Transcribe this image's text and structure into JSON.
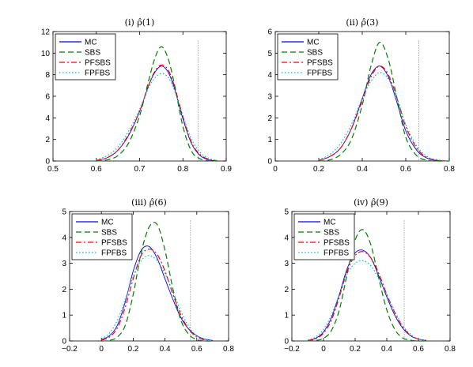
{
  "chart_data": [
    {
      "type": "line",
      "title": "(i) ρ̂(1)",
      "xlim": [
        0.5,
        0.9
      ],
      "ylim": [
        0,
        12
      ],
      "xticks": [
        "0.5",
        "0.6",
        "0.7",
        "0.8",
        "0.9"
      ],
      "yticks": [
        "0",
        "2",
        "4",
        "6",
        "8",
        "10",
        "12"
      ],
      "legend_placement": "top-left",
      "vline": 0.835,
      "x": [
        0.6,
        0.625,
        0.65,
        0.675,
        0.7,
        0.72,
        0.735,
        0.75,
        0.765,
        0.78,
        0.8,
        0.82,
        0.84,
        0.86,
        0.88
      ],
      "series": [
        {
          "name": "MC",
          "values": [
            0.05,
            0.3,
            1.0,
            2.4,
            4.6,
            6.9,
            8.2,
            8.8,
            8.3,
            6.8,
            3.9,
            1.6,
            0.5,
            0.1,
            0.02
          ]
        },
        {
          "name": "SBS",
          "values": [
            0.0,
            0.1,
            0.5,
            1.7,
            4.2,
            7.3,
            9.5,
            10.6,
            9.6,
            7.2,
            3.2,
            0.9,
            0.2,
            0.03,
            0.0
          ]
        },
        {
          "name": "PFSBS",
          "values": [
            0.05,
            0.3,
            1.0,
            2.5,
            4.6,
            6.9,
            8.3,
            8.9,
            8.5,
            7.0,
            4.1,
            1.7,
            0.6,
            0.15,
            0.03
          ]
        },
        {
          "name": "FPFBS",
          "values": [
            0.1,
            0.5,
            1.3,
            2.8,
            4.8,
            6.7,
            7.7,
            8.1,
            7.8,
            6.6,
            4.2,
            2.0,
            0.8,
            0.25,
            0.05
          ]
        }
      ]
    },
    {
      "type": "line",
      "title": "(ii) ρ̂(3)",
      "xlim": [
        0,
        0.8
      ],
      "ylim": [
        0,
        6
      ],
      "xticks": [
        "0",
        "0.2",
        "0.4",
        "0.6",
        "0.8"
      ],
      "yticks": [
        "0",
        "1",
        "2",
        "3",
        "4",
        "5",
        "6"
      ],
      "legend_placement": "top-left",
      "vline": 0.66,
      "x": [
        0.2,
        0.25,
        0.3,
        0.35,
        0.4,
        0.44,
        0.48,
        0.52,
        0.56,
        0.6,
        0.65,
        0.7,
        0.75,
        0.8
      ],
      "series": [
        {
          "name": "MC",
          "values": [
            0.03,
            0.2,
            0.6,
            1.5,
            2.9,
            4.0,
            4.4,
            3.9,
            2.7,
            1.4,
            0.5,
            0.12,
            0.02,
            0.0
          ]
        },
        {
          "name": "SBS",
          "values": [
            0.0,
            0.05,
            0.3,
            1.0,
            2.6,
            4.4,
            5.5,
            4.7,
            2.9,
            1.1,
            0.25,
            0.03,
            0.0,
            0.0
          ]
        },
        {
          "name": "PFSBS",
          "values": [
            0.03,
            0.2,
            0.6,
            1.5,
            2.8,
            3.9,
            4.4,
            4.0,
            2.9,
            1.6,
            0.6,
            0.15,
            0.03,
            0.0
          ]
        },
        {
          "name": "FPFBS",
          "values": [
            0.06,
            0.3,
            0.8,
            1.7,
            2.9,
            3.7,
            4.1,
            3.8,
            2.9,
            1.7,
            0.7,
            0.2,
            0.05,
            0.0
          ]
        }
      ]
    },
    {
      "type": "line",
      "title": "(iii) ρ̂(6)",
      "xlim": [
        -0.2,
        0.8
      ],
      "ylim": [
        0,
        5
      ],
      "xticks": [
        "−0.2",
        "0",
        "0.2",
        "0.4",
        "0.6",
        "0.8"
      ],
      "yticks": [
        "0",
        "1",
        "2",
        "3",
        "4",
        "5"
      ],
      "legend_placement": "top-left",
      "vline": 0.56,
      "x": [
        0.0,
        0.05,
        0.1,
        0.15,
        0.2,
        0.25,
        0.3,
        0.35,
        0.4,
        0.45,
        0.5,
        0.55,
        0.6,
        0.65,
        0.7
      ],
      "series": [
        {
          "name": "MC",
          "values": [
            0.05,
            0.2,
            0.6,
            1.5,
            2.7,
            3.5,
            3.65,
            3.2,
            2.4,
            1.6,
            0.9,
            0.45,
            0.2,
            0.07,
            0.02
          ]
        },
        {
          "name": "SBS",
          "values": [
            0.0,
            0.02,
            0.15,
            0.6,
            1.8,
            3.4,
            4.4,
            4.5,
            3.5,
            2.0,
            0.8,
            0.25,
            0.05,
            0.0,
            0.0
          ]
        },
        {
          "name": "PFSBS",
          "values": [
            0.03,
            0.15,
            0.5,
            1.3,
            2.4,
            3.3,
            3.55,
            3.35,
            2.7,
            1.8,
            1.0,
            0.45,
            0.15,
            0.04,
            0.0
          ]
        },
        {
          "name": "FPFBS",
          "values": [
            0.08,
            0.3,
            0.8,
            1.6,
            2.5,
            3.1,
            3.3,
            3.1,
            2.6,
            1.9,
            1.15,
            0.55,
            0.2,
            0.06,
            0.01
          ]
        }
      ]
    },
    {
      "type": "line",
      "title": "(iv) ρ̂(9)",
      "xlim": [
        -0.2,
        0.8
      ],
      "ylim": [
        0,
        5
      ],
      "xticks": [
        "−0.2",
        "0",
        "0.2",
        "0.4",
        "0.6",
        "0.8"
      ],
      "yticks": [
        "0",
        "1",
        "2",
        "3",
        "4",
        "5"
      ],
      "legend_placement": "top-left",
      "vline": 0.51,
      "x": [
        -0.1,
        -0.05,
        0.0,
        0.05,
        0.1,
        0.15,
        0.2,
        0.25,
        0.3,
        0.35,
        0.4,
        0.45,
        0.5,
        0.55,
        0.6,
        0.65
      ],
      "series": [
        {
          "name": "MC",
          "values": [
            0.02,
            0.1,
            0.35,
            0.9,
            1.8,
            2.8,
            3.4,
            3.5,
            3.2,
            2.5,
            1.7,
            1.0,
            0.5,
            0.2,
            0.07,
            0.02
          ]
        },
        {
          "name": "SBS",
          "values": [
            0.0,
            0.02,
            0.1,
            0.4,
            1.2,
            2.6,
            3.9,
            4.3,
            3.7,
            2.4,
            1.2,
            0.45,
            0.12,
            0.03,
            0.0,
            0.0
          ]
        },
        {
          "name": "PFSBS",
          "values": [
            0.02,
            0.08,
            0.3,
            0.8,
            1.7,
            2.7,
            3.3,
            3.45,
            3.2,
            2.6,
            1.8,
            1.1,
            0.55,
            0.22,
            0.07,
            0.02
          ]
        },
        {
          "name": "FPFBS",
          "values": [
            0.04,
            0.15,
            0.45,
            1.0,
            1.8,
            2.6,
            3.0,
            3.1,
            2.9,
            2.4,
            1.8,
            1.15,
            0.6,
            0.26,
            0.08,
            0.02
          ]
        }
      ]
    }
  ],
  "series_styles": {
    "MC": {
      "color": "#0000ff",
      "dash": ""
    },
    "SBS": {
      "color": "#007f00",
      "dash": "7,4"
    },
    "PFSBS": {
      "color": "#ff0000",
      "dash": "7,3,2,3"
    },
    "FPFBS": {
      "color": "#00bfbf",
      "dash": "1.5,2.5"
    }
  },
  "vline_color": "#777777"
}
